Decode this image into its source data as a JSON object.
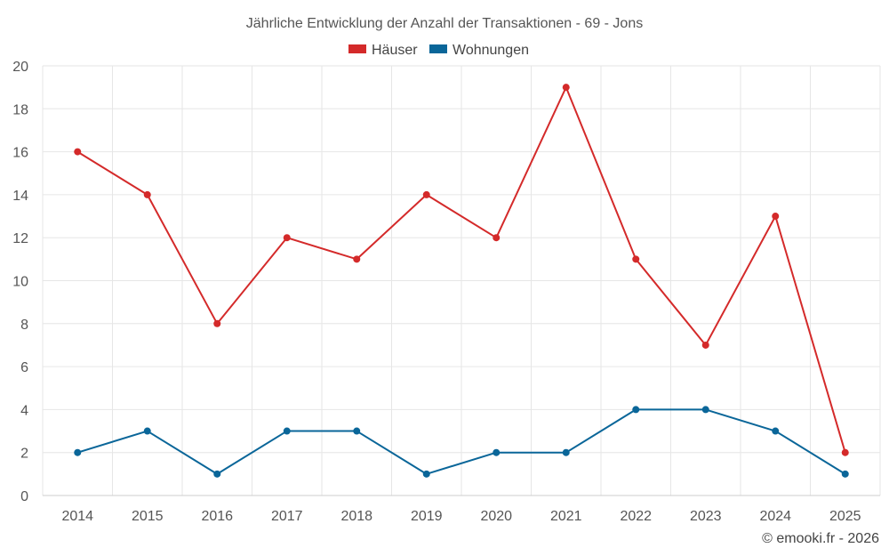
{
  "chart_data": {
    "type": "line",
    "title": "Jährliche Entwicklung der Anzahl der Transaktionen - 69 - Jons",
    "categories": [
      "2014",
      "2015",
      "2016",
      "2017",
      "2018",
      "2019",
      "2020",
      "2021",
      "2022",
      "2023",
      "2024",
      "2025"
    ],
    "series": [
      {
        "name": "Häuser",
        "color": "#d42a2a",
        "values": [
          16,
          14,
          8,
          12,
          11,
          14,
          12,
          19,
          11,
          7,
          13,
          2
        ]
      },
      {
        "name": "Wohnungen",
        "color": "#0a6699",
        "values": [
          2,
          3,
          1,
          3,
          3,
          1,
          2,
          2,
          4,
          4,
          3,
          1
        ]
      }
    ],
    "yticks": [
      0,
      2,
      4,
      6,
      8,
      10,
      12,
      14,
      16,
      18,
      20
    ],
    "ylim": [
      0,
      20
    ],
    "xlabel": "",
    "ylabel": "",
    "grid": true,
    "legend": "top-center"
  },
  "credit": "© emooki.fr - 2026"
}
